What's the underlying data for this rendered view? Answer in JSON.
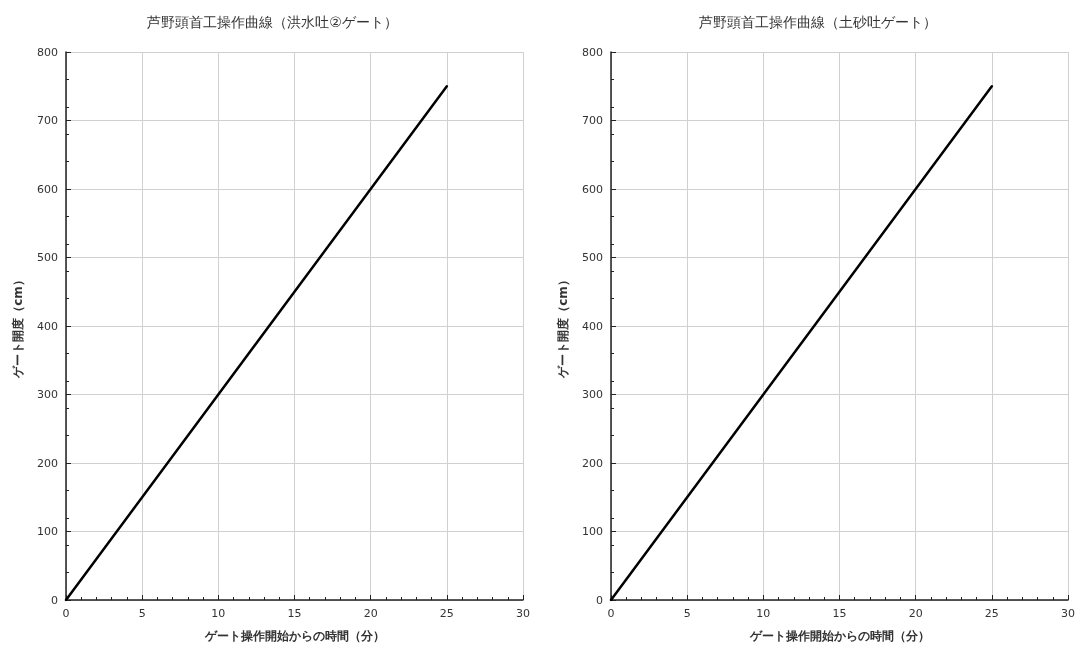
{
  "chart_data": [
    {
      "type": "line",
      "title": "芦野頭首工操作曲線（洪水吐②ゲート）",
      "xlabel": "ゲート操作開始からの時間（分）",
      "ylabel": "ゲート開度（cm）",
      "x": [
        0,
        5,
        10,
        15,
        20,
        25
      ],
      "series": [
        {
          "color": "#000000",
          "values": [
            0,
            150,
            300,
            450,
            600,
            750
          ]
        }
      ],
      "xlim": [
        0,
        30
      ],
      "xticks": [
        0,
        5,
        10,
        15,
        20,
        25,
        30
      ],
      "ylim": [
        0,
        800
      ],
      "yticks": [
        0,
        100,
        200,
        300,
        400,
        500,
        600,
        700,
        800
      ],
      "grid": true,
      "marker": "none",
      "line_style": "solid"
    },
    {
      "type": "line",
      "title": "芦野頭首工操作曲線（土砂吐ゲート）",
      "xlabel": "ゲート操作開始からの時間（分）",
      "ylabel": "ゲート開度（cm）",
      "x": [
        0,
        5,
        10,
        15,
        20,
        25
      ],
      "series": [
        {
          "color": "#000000",
          "values": [
            0,
            150,
            300,
            450,
            600,
            750
          ]
        }
      ],
      "xlim": [
        0,
        30
      ],
      "xticks": [
        0,
        5,
        10,
        15,
        20,
        25,
        30
      ],
      "ylim": [
        0,
        800
      ],
      "yticks": [
        0,
        100,
        200,
        300,
        400,
        500,
        600,
        700,
        800
      ],
      "grid": true,
      "marker": "none",
      "line_style": "solid"
    }
  ]
}
